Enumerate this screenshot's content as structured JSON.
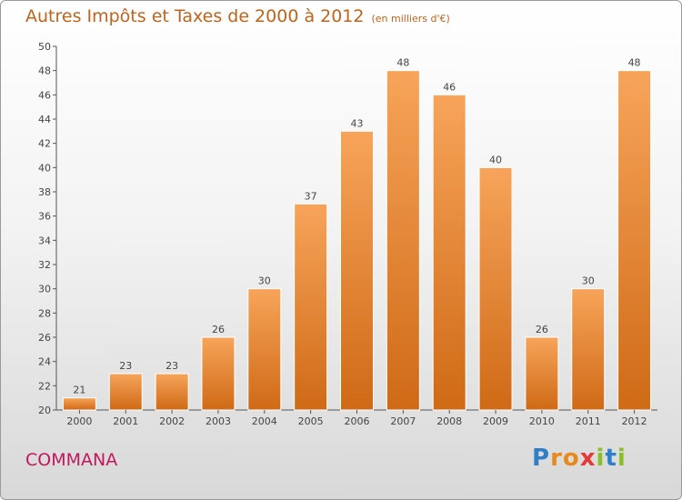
{
  "header": {
    "title": "Autres Impôts et Taxes de 2000 à 2012",
    "unit": "(en milliers d'€)"
  },
  "footer": {
    "commune": "COMMANA",
    "logo": {
      "letters": [
        "P",
        "r",
        "o",
        "x",
        "i",
        "t",
        "i"
      ],
      "colors": [
        "#2f7fc8",
        "#e8891c",
        "#e8891c",
        "#e53935",
        "#8bbf2a",
        "#2f7fc8",
        "#8bbf2a"
      ]
    }
  },
  "colors": {
    "bar_top": "#f7a45a",
    "bar_bottom": "#cf6a16",
    "title": "#c0631a",
    "commune": "#c2185b"
  },
  "chart_data": {
    "type": "bar",
    "title": "Autres Impôts et Taxes de 2000 à 2012",
    "subtitle": "(en milliers d'€)",
    "categories": [
      "2000",
      "2001",
      "2002",
      "2003",
      "2004",
      "2005",
      "2006",
      "2007",
      "2008",
      "2009",
      "2010",
      "2011",
      "2012"
    ],
    "values": [
      21,
      23,
      23,
      26,
      30,
      37,
      43,
      48,
      46,
      40,
      26,
      30,
      48
    ],
    "ylim": [
      20,
      50
    ],
    "yticks": [
      20,
      22,
      24,
      26,
      28,
      30,
      32,
      34,
      36,
      38,
      40,
      42,
      44,
      46,
      48,
      50
    ],
    "grid": false,
    "xlabel": "",
    "ylabel": ""
  }
}
